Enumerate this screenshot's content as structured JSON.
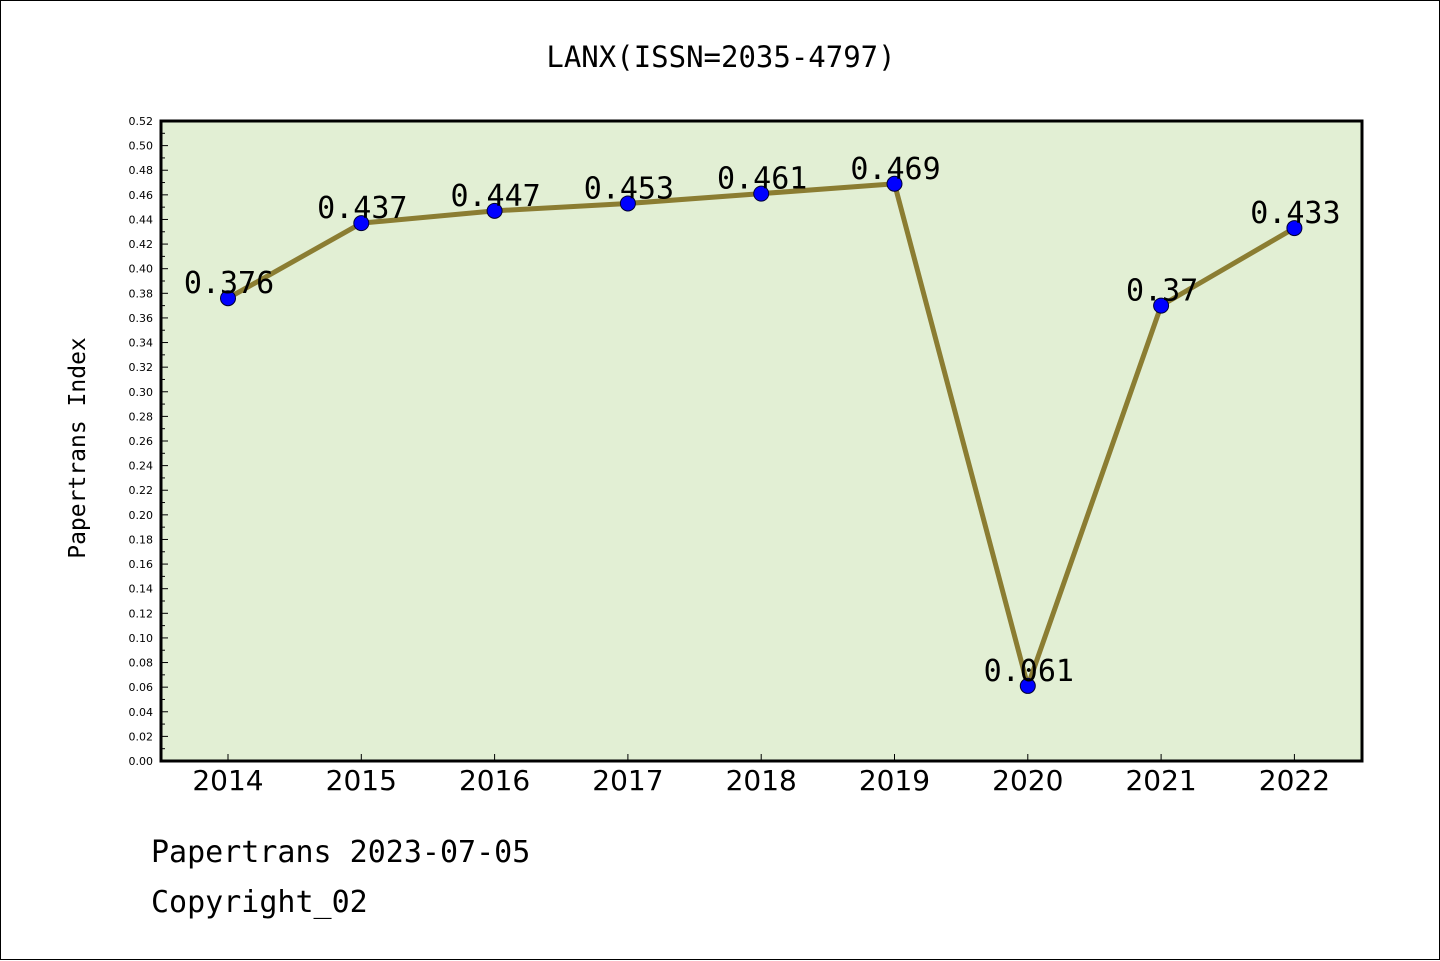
{
  "chart_data": {
    "type": "line",
    "title": "LANX(ISSN=2035-4797)",
    "xlabel": "",
    "ylabel": "Papertrans Index",
    "categories": [
      "2014",
      "2015",
      "2016",
      "2017",
      "2018",
      "2019",
      "2020",
      "2021",
      "2022"
    ],
    "series": [
      {
        "values": [
          0.376,
          0.437,
          0.447,
          0.453,
          0.461,
          0.469,
          0.061,
          0.37,
          0.433
        ],
        "labels": [
          "0.376",
          "0.437",
          "0.447",
          "0.453",
          "0.461",
          "0.469",
          "0.061",
          "0.37",
          "0.433"
        ]
      }
    ],
    "ylim": [
      0,
      0.52
    ],
    "yticks": [
      "0.00",
      "0.02",
      "0.04",
      "0.06",
      "0.08",
      "0.10",
      "0.12",
      "0.14",
      "0.16",
      "0.18",
      "0.20",
      "0.22",
      "0.24",
      "0.26",
      "0.28",
      "0.30",
      "0.32",
      "0.34",
      "0.36",
      "0.38",
      "0.40",
      "0.42",
      "0.44",
      "0.46",
      "0.48",
      "0.50",
      "0.52"
    ],
    "grid": false,
    "colors": {
      "plot_background": "#e2efd4",
      "line": "#8b7d32",
      "marker": "#0000ff"
    }
  },
  "footer": {
    "source": "Papertrans 2023-07-05",
    "copyright": "Copyright_02"
  }
}
